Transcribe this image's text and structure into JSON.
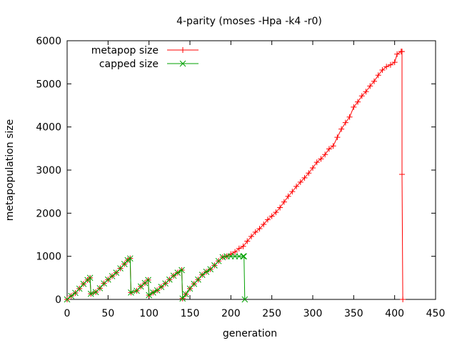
{
  "chart_data": {
    "type": "line",
    "title": "4-parity (moses -Hpa -k4 -r0)",
    "xlabel": "generation",
    "ylabel": "metapopulation size",
    "xlim": [
      0,
      450
    ],
    "ylim": [
      0,
      6000
    ],
    "xticks": [
      0,
      50,
      100,
      150,
      200,
      250,
      300,
      350,
      400,
      450
    ],
    "yticks": [
      0,
      1000,
      2000,
      3000,
      4000,
      5000,
      6000
    ],
    "grid": false,
    "legend_position": "top-left",
    "series": [
      {
        "name": "metapop size",
        "color": "#ff0000",
        "marker": "plus",
        "points": [
          [
            0,
            0
          ],
          [
            5,
            80
          ],
          [
            10,
            150
          ],
          [
            15,
            250
          ],
          [
            20,
            360
          ],
          [
            25,
            450
          ],
          [
            28,
            500
          ],
          [
            29,
            130
          ],
          [
            35,
            170
          ],
          [
            40,
            260
          ],
          [
            45,
            370
          ],
          [
            50,
            460
          ],
          [
            55,
            540
          ],
          [
            60,
            620
          ],
          [
            65,
            720
          ],
          [
            70,
            820
          ],
          [
            74,
            910
          ],
          [
            77,
            950
          ],
          [
            78,
            160
          ],
          [
            85,
            200
          ],
          [
            90,
            300
          ],
          [
            95,
            380
          ],
          [
            99,
            450
          ],
          [
            100,
            100
          ],
          [
            105,
            160
          ],
          [
            110,
            210
          ],
          [
            115,
            290
          ],
          [
            120,
            370
          ],
          [
            125,
            460
          ],
          [
            130,
            550
          ],
          [
            135,
            620
          ],
          [
            140,
            680
          ],
          [
            141,
            20
          ],
          [
            145,
            120
          ],
          [
            150,
            250
          ],
          [
            155,
            360
          ],
          [
            160,
            460
          ],
          [
            165,
            570
          ],
          [
            170,
            640
          ],
          [
            175,
            700
          ],
          [
            180,
            790
          ],
          [
            185,
            890
          ],
          [
            190,
            980
          ],
          [
            195,
            1000
          ],
          [
            200,
            1050
          ],
          [
            205,
            1100
          ],
          [
            210,
            1180
          ],
          [
            215,
            1230
          ],
          [
            220,
            1350
          ],
          [
            225,
            1460
          ],
          [
            230,
            1560
          ],
          [
            235,
            1640
          ],
          [
            240,
            1740
          ],
          [
            245,
            1850
          ],
          [
            250,
            1930
          ],
          [
            255,
            2020
          ],
          [
            260,
            2130
          ],
          [
            265,
            2260
          ],
          [
            270,
            2390
          ],
          [
            275,
            2500
          ],
          [
            280,
            2620
          ],
          [
            285,
            2720
          ],
          [
            290,
            2820
          ],
          [
            295,
            2930
          ],
          [
            300,
            3050
          ],
          [
            305,
            3180
          ],
          [
            310,
            3260
          ],
          [
            315,
            3360
          ],
          [
            320,
            3490
          ],
          [
            325,
            3560
          ],
          [
            330,
            3760
          ],
          [
            335,
            3950
          ],
          [
            340,
            4100
          ],
          [
            345,
            4230
          ],
          [
            350,
            4460
          ],
          [
            355,
            4580
          ],
          [
            360,
            4720
          ],
          [
            365,
            4820
          ],
          [
            370,
            4950
          ],
          [
            375,
            5060
          ],
          [
            380,
            5200
          ],
          [
            385,
            5320
          ],
          [
            390,
            5400
          ],
          [
            395,
            5440
          ],
          [
            400,
            5500
          ],
          [
            403,
            5690
          ],
          [
            408,
            5750
          ],
          [
            409,
            5750
          ],
          [
            409,
            2900
          ],
          [
            410,
            0
          ]
        ]
      },
      {
        "name": "capped size",
        "color": "#00a000",
        "marker": "cross",
        "points": [
          [
            0,
            0
          ],
          [
            5,
            80
          ],
          [
            10,
            150
          ],
          [
            15,
            250
          ],
          [
            20,
            360
          ],
          [
            25,
            450
          ],
          [
            28,
            500
          ],
          [
            29,
            130
          ],
          [
            35,
            170
          ],
          [
            40,
            260
          ],
          [
            45,
            370
          ],
          [
            50,
            460
          ],
          [
            55,
            540
          ],
          [
            60,
            620
          ],
          [
            65,
            720
          ],
          [
            70,
            820
          ],
          [
            74,
            910
          ],
          [
            77,
            950
          ],
          [
            78,
            160
          ],
          [
            85,
            200
          ],
          [
            90,
            300
          ],
          [
            95,
            380
          ],
          [
            99,
            450
          ],
          [
            100,
            100
          ],
          [
            105,
            160
          ],
          [
            110,
            210
          ],
          [
            115,
            290
          ],
          [
            120,
            370
          ],
          [
            125,
            460
          ],
          [
            130,
            550
          ],
          [
            135,
            620
          ],
          [
            140,
            680
          ],
          [
            141,
            20
          ],
          [
            145,
            120
          ],
          [
            150,
            250
          ],
          [
            155,
            360
          ],
          [
            160,
            460
          ],
          [
            165,
            570
          ],
          [
            170,
            640
          ],
          [
            175,
            700
          ],
          [
            180,
            790
          ],
          [
            185,
            890
          ],
          [
            190,
            980
          ],
          [
            195,
            1000
          ],
          [
            200,
            1000
          ],
          [
            205,
            1000
          ],
          [
            210,
            1000
          ],
          [
            215,
            1000
          ],
          [
            216,
            1000
          ],
          [
            217,
            0
          ]
        ]
      }
    ]
  }
}
